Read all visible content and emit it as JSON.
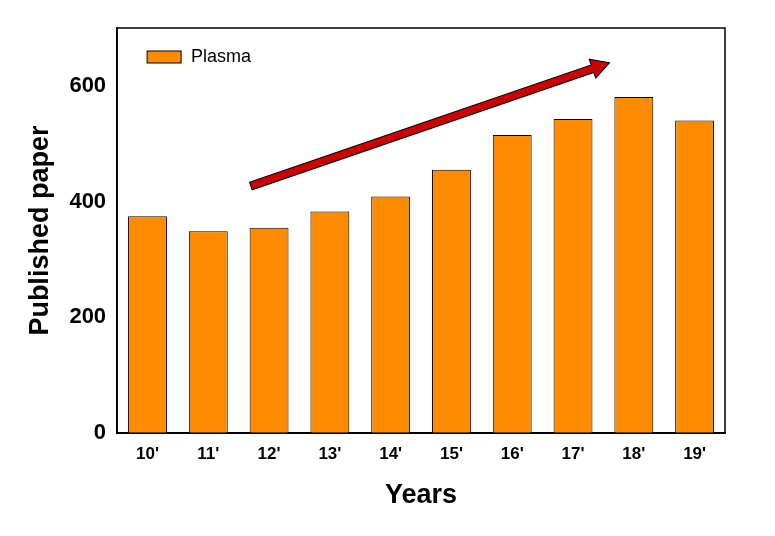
{
  "chart_data": {
    "type": "bar",
    "x_label": "Years",
    "y_label": "Published paper",
    "categories": [
      "10'",
      "11'",
      "12'",
      "13'",
      "14'",
      "15'",
      "16'",
      "17'",
      "18'",
      "19'"
    ],
    "series": [
      {
        "name": "Plasma",
        "color": "#ff8c00",
        "values": [
          375,
          349,
          355,
          383,
          409,
          455,
          515,
          543,
          581,
          540
        ]
      }
    ],
    "ylim": [
      0,
      700
    ],
    "yticks": [
      0,
      200,
      400,
      600
    ],
    "grid": false,
    "legend": "upper left"
  }
}
